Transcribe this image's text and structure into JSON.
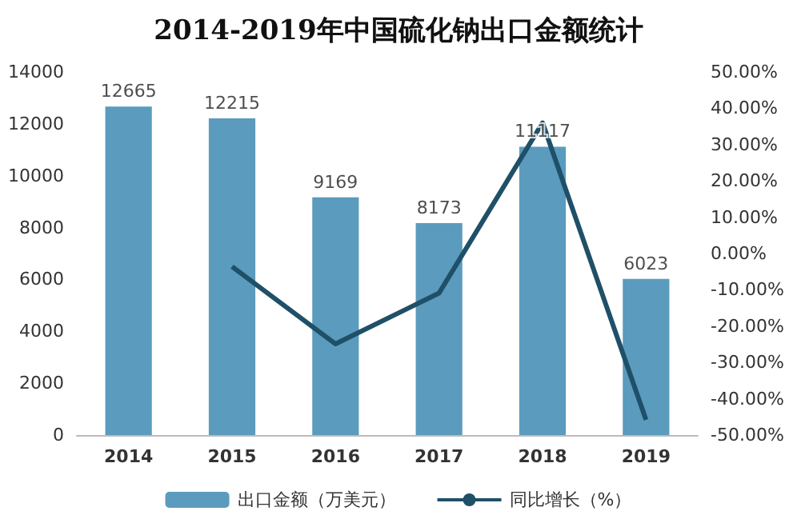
{
  "chart_data": {
    "type": "bar",
    "title": "2014-2019年中国硫化钠出口金额统计",
    "categories": [
      "2014",
      "2015",
      "2016",
      "2017",
      "2018",
      "2019"
    ],
    "series": [
      {
        "name": "出口金额（万美元）",
        "color": "#5b9bbd",
        "values": [
          12665,
          12215,
          9169,
          8173,
          11117,
          6023
        ],
        "value_labels": [
          "12665",
          "12215",
          "9169",
          "8173",
          "11117",
          "6023"
        ]
      },
      {
        "name": "同比增长（%）",
        "type": "line",
        "axis": "y2",
        "color": "#1f5068",
        "values": [
          null,
          -3.6,
          -24.9,
          -10.9,
          36.0,
          -45.8
        ]
      }
    ],
    "ylim": [
      0,
      14000
    ],
    "yticks": [
      0,
      2000,
      4000,
      6000,
      8000,
      10000,
      12000,
      14000
    ],
    "y2lim": [
      -50,
      50
    ],
    "y2ticks": [
      {
        "value": -50,
        "label": "-50.00%"
      },
      {
        "value": -40,
        "label": "-40.00%"
      },
      {
        "value": -30,
        "label": "-30.00%"
      },
      {
        "value": -20,
        "label": "-20.00%"
      },
      {
        "value": -10,
        "label": "-10.00%"
      },
      {
        "value": 0,
        "label": "0.00%"
      },
      {
        "value": 10,
        "label": "10.00%"
      },
      {
        "value": 20,
        "label": "20.00%"
      },
      {
        "value": 30,
        "label": "30.00%"
      },
      {
        "value": 40,
        "label": "40.00%"
      },
      {
        "value": 50,
        "label": "50.00%"
      }
    ],
    "legend": "bottom",
    "grid": false,
    "marker": "none",
    "line_style": "solid"
  }
}
